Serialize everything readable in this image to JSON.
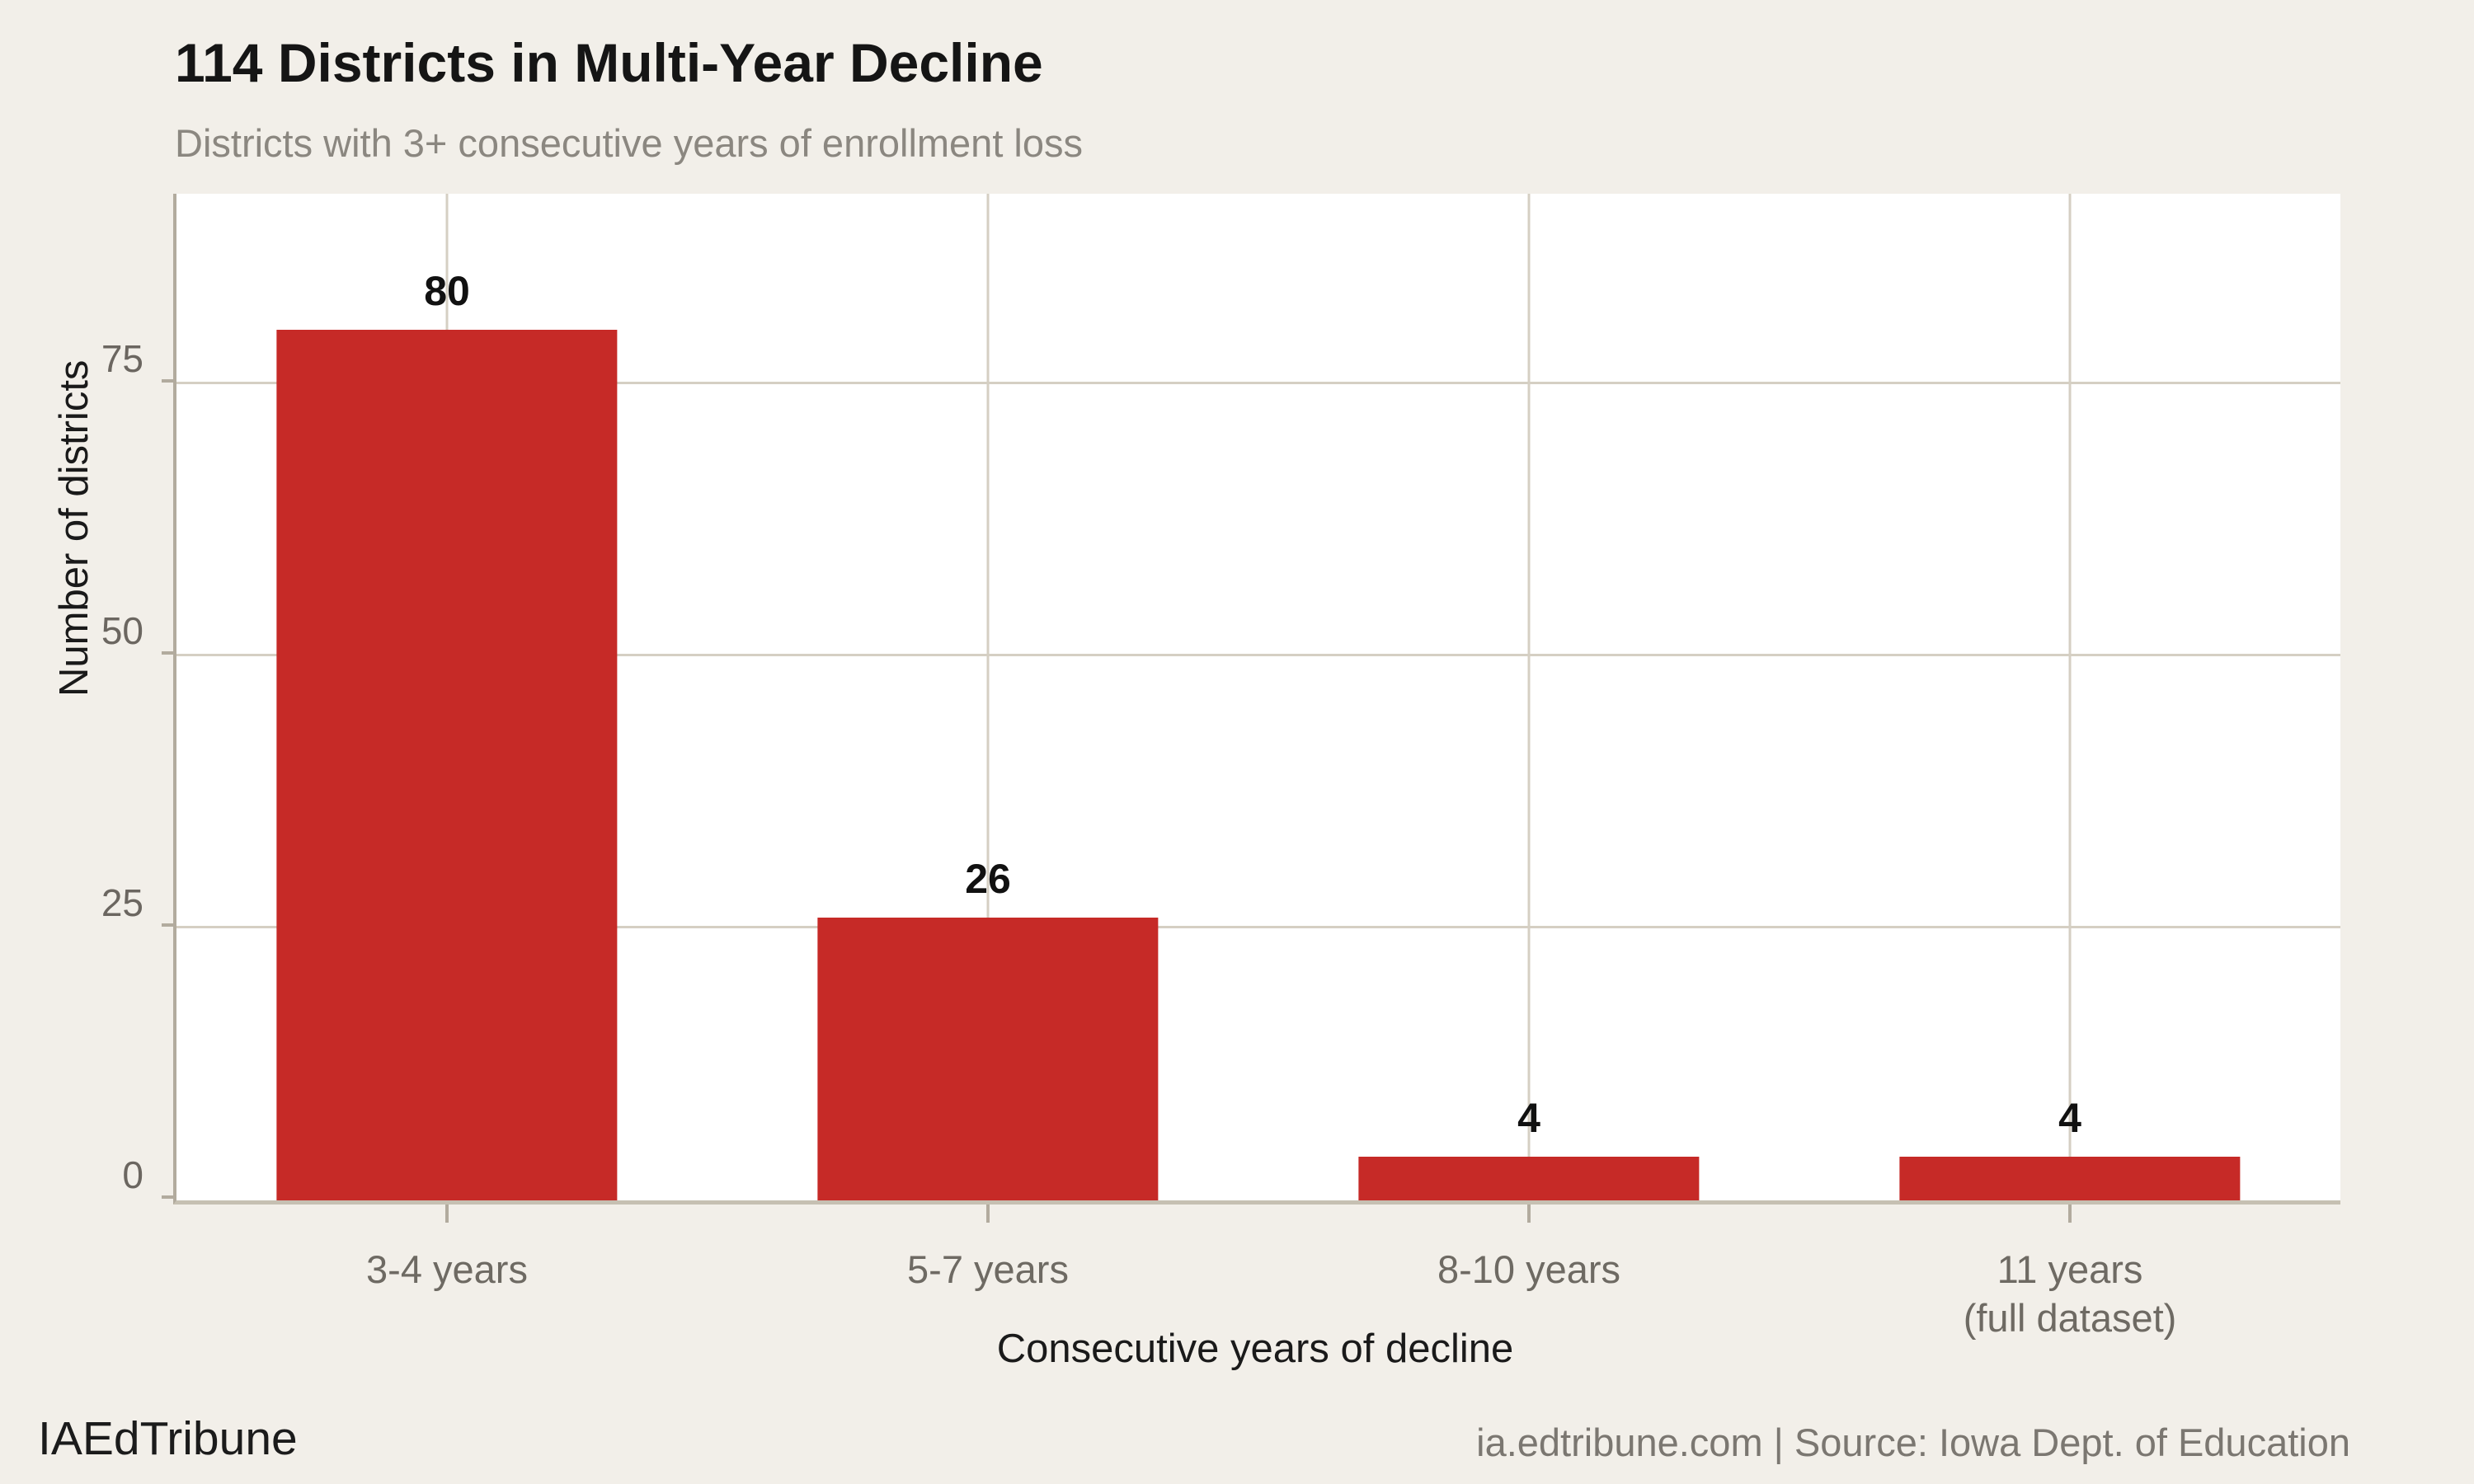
{
  "header": {
    "title": "114 Districts in Multi-Year Decline",
    "subtitle": "Districts with 3+ consecutive years of enrollment loss"
  },
  "footer": {
    "brand": "IAEdTribune",
    "source": "ia.edtribune.com | Source: Iowa Dept. of Education"
  },
  "chart_data": {
    "type": "bar",
    "title": "114 Districts in Multi-Year Decline",
    "subtitle": "Districts with 3+ consecutive years of enrollment loss",
    "categories": [
      "3-4 years",
      "5-7 years",
      "8-10 years",
      "11 years\n(full dataset)"
    ],
    "values": [
      80,
      26,
      4,
      4
    ],
    "value_labels": [
      "80",
      "26",
      "4",
      "4"
    ],
    "xlabel": "Consecutive years of decline",
    "ylabel": "Number of districts",
    "yticks": [
      0,
      25,
      50,
      75
    ],
    "ylim": [
      0,
      92.5
    ],
    "grid": true,
    "legend": "none",
    "colors": {
      "bar": "#c62a27",
      "background": "#f2efe9",
      "plot_background": "#ffffff",
      "gridline": "#d5cfc3",
      "axis_line": "#b2ab9e",
      "tick_label": "#6b6660",
      "title": "#151515",
      "subtitle": "#8b8780",
      "value_label": "#111111"
    }
  }
}
